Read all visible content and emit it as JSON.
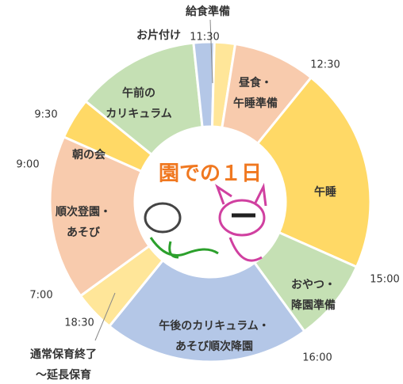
{
  "chart_data": {
    "type": "donut",
    "title": "園での１日",
    "categories": [
      [
        "順次登園・",
        "あそび"
      ],
      [
        "朝の会"
      ],
      [
        "午前の",
        "カリキュラム"
      ],
      [
        "お片付け"
      ],
      [
        "給食準備"
      ],
      [
        "昼食・",
        "午睡準備"
      ],
      [
        "午睡"
      ],
      [
        "おやつ・",
        "降園準備"
      ],
      [
        "午後のカリキュラム・",
        "あそび順次降園"
      ],
      [
        "通常保育終了",
        "～延長保育"
      ]
    ],
    "values": [
      120,
      30,
      90,
      15,
      15,
      60,
      150,
      60,
      150,
      30
    ],
    "colors": [
      "#f8cbad",
      "#ffd966",
      "#c5e0b4",
      "#b4c7e7",
      "#ffe699",
      "#f8cbad",
      "#ffd966",
      "#c5e0b4",
      "#b4c7e7",
      "#ffe699"
    ],
    "time_labels": [
      "7:00",
      "9:00",
      "9:30",
      "11:30",
      "12:30",
      "15:00",
      "16:00",
      "18:30"
    ]
  }
}
